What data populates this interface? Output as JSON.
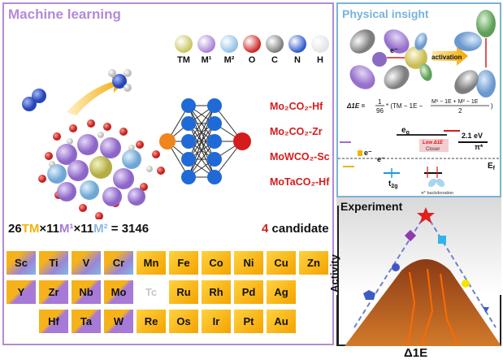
{
  "left_panel": {
    "title": "Machine learning",
    "legend": [
      {
        "label": "TM",
        "color": "#c9c55b"
      },
      {
        "label": "M¹",
        "color": "#a880d6"
      },
      {
        "label": "M²",
        "color": "#8ec0e6"
      },
      {
        "label": "O",
        "color": "#cc2222"
      },
      {
        "label": "C",
        "color": "#7b7b7b"
      },
      {
        "label": "N",
        "color": "#2d55cc"
      },
      {
        "label": "H",
        "color": "#e3e3e3"
      }
    ],
    "candidates": [
      "Mo₂CO₂-Hf",
      "Mo₂CO₂-Zr",
      "MoWCO₂-Sc",
      "MoTaCO₂-Hf"
    ],
    "formula": {
      "n1": "26",
      "tm": "TM",
      "x1": "×11",
      "m1": "M¹",
      "x2": "×11",
      "m2": "M²",
      "eq": " = 3146"
    },
    "candidate_count": {
      "num": "4",
      "word": " candidate"
    },
    "periodic_table": [
      [
        "Sc",
        "Ti",
        "V",
        "Cr",
        "Mn",
        "Fe",
        "Co",
        "Ni",
        "Cu",
        "Zn"
      ],
      [
        "Y",
        "Zr",
        "Nb",
        "Mo",
        "Tc",
        "Ru",
        "Rh",
        "Pd",
        "Ag"
      ],
      [
        "",
        "Hf",
        "Ta",
        "W",
        "Re",
        "Os",
        "Ir",
        "Pt",
        "Au"
      ]
    ]
  },
  "right_top": {
    "title": "Physical insight",
    "electron_label": "e⁻",
    "activation_label": "activation",
    "equation": {
      "lhs": "Δ1E =",
      "frac_num": "1",
      "frac_den": "96",
      "mid": "* (TM − 1E −",
      "num2": "M¹ − 1E + M² − 1E",
      "den2": "2",
      "close": ")"
    },
    "levels": {
      "eg": "e",
      "eg_sub": "g",
      "t2g": "t",
      "t2g_sub": "2g",
      "gap": "2.1 eV",
      "pi_star": "π*",
      "ef": "E",
      "ef_sub": "f",
      "low": "Low Δ1E",
      "closer": "Closer",
      "backdonation": "π* backdonation",
      "e1": "e⁻",
      "e2": "e⁻"
    }
  },
  "right_bottom": {
    "title": "Experiment",
    "ylabel": "Activity",
    "xlabel": "Δ1E"
  }
}
